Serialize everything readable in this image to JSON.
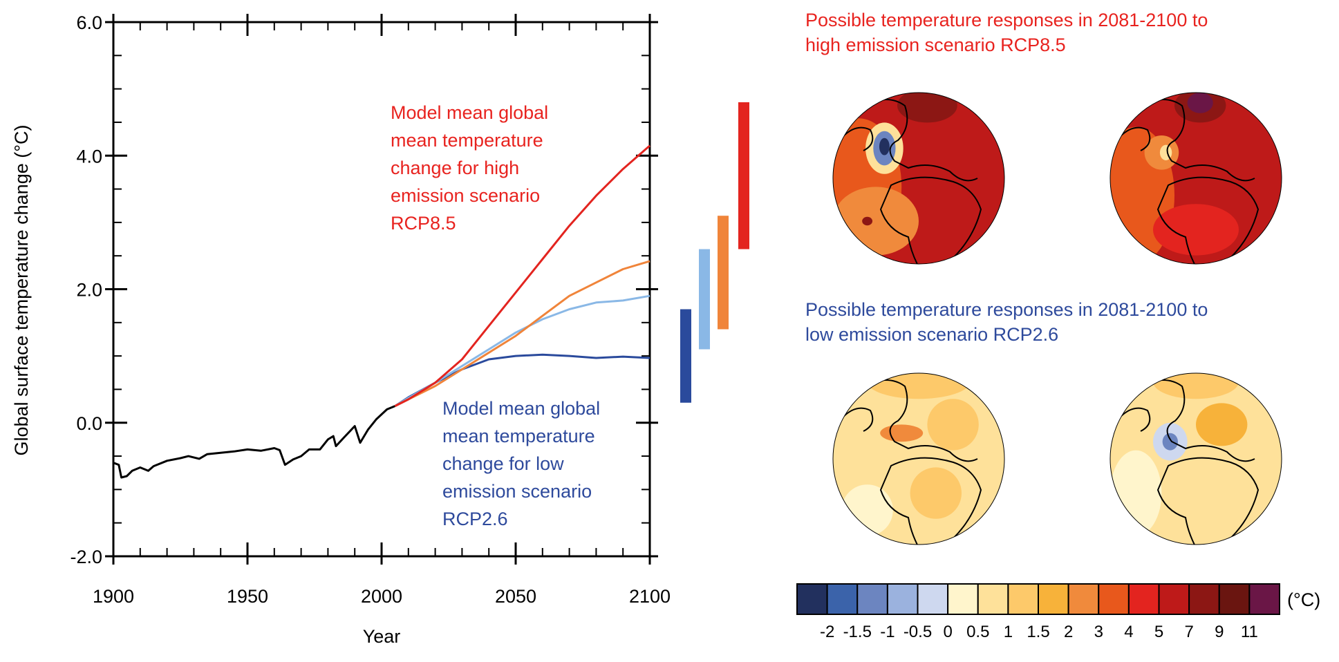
{
  "chart_data": [
    {
      "type": "line",
      "xlabel": "Year",
      "ylabel": "Global surface temperature change (°C)",
      "xlim": [
        1900,
        2100
      ],
      "ylim": [
        -2.0,
        6.0
      ],
      "xticks": [
        "1900",
        "1950",
        "2000",
        "2050",
        "2100"
      ],
      "yticks": [
        "-2.0",
        "0.0",
        "2.0",
        "4.0",
        "6.0"
      ],
      "grid": false,
      "series": [
        {
          "color": "#000000",
          "x": [
            1900,
            1902,
            1903,
            1905,
            1907,
            1910,
            1913,
            1915,
            1920,
            1925,
            1928,
            1932,
            1935,
            1940,
            1945,
            1950,
            1955,
            1960,
            1962,
            1964,
            1967,
            1970,
            1973,
            1977,
            1980,
            1982,
            1983,
            1986,
            1990,
            1992,
            1995,
            1998,
            2002,
            2005
          ],
          "y": [
            -0.6,
            -0.63,
            -0.82,
            -0.8,
            -0.72,
            -0.67,
            -0.72,
            -0.65,
            -0.57,
            -0.53,
            -0.5,
            -0.54,
            -0.47,
            -0.45,
            -0.43,
            -0.4,
            -0.42,
            -0.38,
            -0.41,
            -0.63,
            -0.55,
            -0.5,
            -0.4,
            -0.4,
            -0.25,
            -0.2,
            -0.35,
            -0.22,
            -0.05,
            -0.3,
            -0.1,
            0.05,
            0.2,
            0.25
          ]
        },
        {
          "color": "#2a4a9c",
          "x": [
            2005,
            2010,
            2020,
            2030,
            2040,
            2050,
            2060,
            2070,
            2080,
            2090,
            2100
          ],
          "y": [
            0.25,
            0.38,
            0.6,
            0.8,
            0.95,
            1.0,
            1.02,
            1.0,
            0.97,
            0.99,
            0.97
          ]
        },
        {
          "color": "#8ab8e6",
          "x": [
            2005,
            2010,
            2020,
            2030,
            2040,
            2050,
            2060,
            2070,
            2080,
            2090,
            2100
          ],
          "y": [
            0.25,
            0.37,
            0.6,
            0.85,
            1.1,
            1.35,
            1.55,
            1.7,
            1.8,
            1.83,
            1.9
          ]
        },
        {
          "color": "#f0843a",
          "x": [
            2005,
            2010,
            2020,
            2030,
            2040,
            2050,
            2060,
            2070,
            2080,
            2090,
            2100
          ],
          "y": [
            0.25,
            0.35,
            0.55,
            0.8,
            1.05,
            1.3,
            1.6,
            1.9,
            2.1,
            2.3,
            2.42
          ]
        },
        {
          "color": "#e3241f",
          "x": [
            2005,
            2010,
            2020,
            2030,
            2040,
            2050,
            2060,
            2070,
            2080,
            2090,
            2100
          ],
          "y": [
            0.25,
            0.35,
            0.6,
            0.95,
            1.45,
            1.95,
            2.45,
            2.95,
            3.4,
            3.8,
            4.15
          ]
        }
      ],
      "range_bars": [
        {
          "color": "#2a4a9c",
          "low": 0.3,
          "high": 1.7
        },
        {
          "color": "#8ab8e6",
          "low": 1.1,
          "high": 2.6
        },
        {
          "color": "#f0843a",
          "low": 1.4,
          "high": 3.1
        },
        {
          "color": "#e3241f",
          "low": 2.6,
          "high": 4.8
        }
      ],
      "annotations": {
        "high": {
          "color": "#e8231f",
          "lines": [
            "Model mean global",
            "mean temperature",
            "change for high",
            "emission scenario",
            "RCP8.5"
          ]
        },
        "low": {
          "color": "#2e4a9c",
          "lines": [
            "Model mean global",
            "mean temperature",
            "change for low",
            "emission scenario",
            "RCP2.6"
          ]
        }
      }
    }
  ],
  "maps": {
    "high": {
      "title_lines": [
        "Possible temperature responses in 2081-2100 to",
        "high emission scenario RCP8.5"
      ],
      "color": "#e8231f"
    },
    "low": {
      "title_lines": [
        "Possible temperature responses in 2081-2100 to",
        "low emission scenario RCP2.6"
      ],
      "color": "#2e4a9c"
    }
  },
  "colorbar": {
    "unit": "(°C)",
    "labels": [
      "-2",
      "-1.5",
      "-1",
      "-0.5",
      "0",
      "0.5",
      "1",
      "1.5",
      "2",
      "3",
      "4",
      "5",
      "7",
      "9",
      "11"
    ],
    "colors": [
      "#22305e",
      "#3b63aa",
      "#6c85c0",
      "#9bb2de",
      "#ced8ef",
      "#fff5cc",
      "#fee19a",
      "#fdc96a",
      "#f7b23a",
      "#f08a3c",
      "#e8581c",
      "#e3241f",
      "#be1a19",
      "#8c1714",
      "#6a1510",
      "#6a1646"
    ]
  }
}
